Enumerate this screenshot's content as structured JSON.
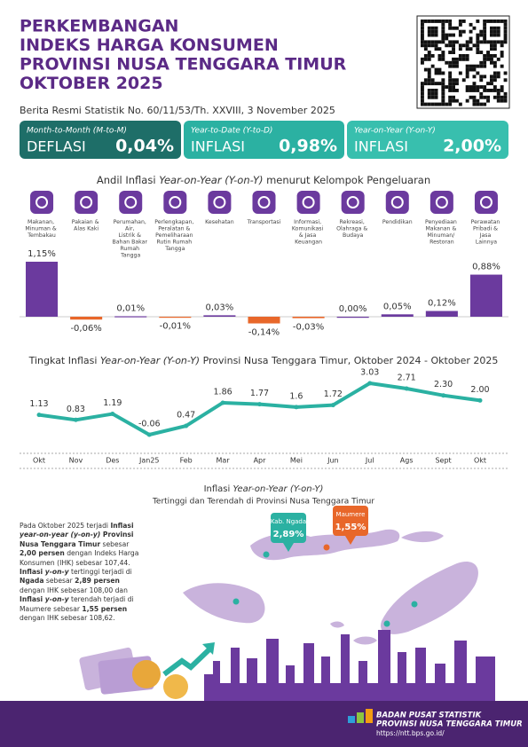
{
  "header": {
    "title_lines": [
      "PERKEMBANGAN",
      "INDEKS HARGA KONSUMEN",
      "PROVINSI NUSA TENGGARA TIMUR",
      "OKTOBER 2025"
    ],
    "subtitle": "Berita Resmi Statistik No. 60/11/53/Th. XXVIII, 3 November 2025"
  },
  "cards": [
    {
      "label": "Month-to-Month (M-to-M)",
      "kind": "DEFLASI",
      "value": "0,04%",
      "color": "#1e6e68"
    },
    {
      "label": "Year-to-Date (Y-to-D)",
      "kind": "INFLASI",
      "value": "0,98%",
      "color": "#2bb1a2"
    },
    {
      "label": "Year-on-Year (Y-on-Y)",
      "kind": "INFLASI",
      "value": "2,00%",
      "color": "#38bfae"
    }
  ],
  "chart_data": [
    {
      "type": "bar",
      "title_parts": [
        "Andil Inflasi ",
        "Year-on-Year (Y-on-Y)",
        " menurut Kelompok Pengeluaran"
      ],
      "categories": [
        "Makanan, Minuman & Tembakau",
        "Pakaian & Alas Kaki",
        "Perumahan, Air, Listrik & Bahan Bakar Rumah Tangga",
        "Perlengkapan, Peralatan & Pemeliharaan Rutin Rumah Tangga",
        "Kesehatan",
        "Transportasi",
        "Informasi, Komunikasi & Jasa Keuangan",
        "Rekreasi, Olahraga & Budaya",
        "Pendidikan",
        "Penyediaan Makanan & Minuman/ Restoran",
        "Perawatan Pribadi & Jasa Lainnya"
      ],
      "values": [
        1.15,
        -0.06,
        0.01,
        -0.01,
        0.03,
        -0.14,
        -0.03,
        0.0,
        0.05,
        0.12,
        0.88
      ],
      "value_labels": [
        "1,15%",
        "-0,06%",
        "0,01%",
        "-0,01%",
        "0,03%",
        "-0,14%",
        "-0,03%",
        "0,00%",
        "0,05%",
        "0,12%",
        "0,88%"
      ],
      "positive_color": "#6b3a9e",
      "negative_color": "#e8672a"
    },
    {
      "type": "line",
      "title_parts": [
        "Tingkat Inflasi ",
        "Year-on-Year (Y-on-Y)",
        " Provinsi Nusa Tenggara Timur, Oktober 2024 - Oktober 2025"
      ],
      "categories": [
        "Okt",
        "Nov",
        "Des",
        "Jan25",
        "Feb",
        "Mar",
        "Apr",
        "Mei",
        "Jun",
        "Jul",
        "Ags",
        "Sept",
        "Okt"
      ],
      "values": [
        1.13,
        0.83,
        1.19,
        -0.06,
        0.47,
        1.86,
        1.77,
        1.6,
        1.72,
        3.03,
        2.71,
        2.3,
        2.0
      ],
      "value_labels": [
        "1.13",
        "0.83",
        "1.19",
        "-0.06",
        "0.47",
        "1.86",
        "1.77",
        "1.6",
        "1.72",
        "3.03",
        "2.71",
        "2.30",
        "2.00"
      ],
      "color": "#2bb1a2"
    }
  ],
  "map": {
    "title_parts": [
      "Inflasi ",
      "Year-on-Year (Y-on-Y)"
    ],
    "subtitle": "Tertinggi dan Terendah di Provinsi Nusa Tenggara Timur",
    "callouts": [
      {
        "name": "Kab. Ngada",
        "value": "2,89%",
        "color": "#2bb1a2"
      },
      {
        "name": "Maumere",
        "value": "1,55%",
        "color": "#e8672a"
      }
    ],
    "paragraph": [
      {
        "text": "Pada Oktober 2025 terjadi ",
        "style": "normal"
      },
      {
        "text": "Inflasi ",
        "style": "bold"
      },
      {
        "text": "year-on-year (y-on-y)",
        "style": "bold-italic"
      },
      {
        "text": " Provinsi Nusa Tenggara Timur",
        "style": "bold"
      },
      {
        "text": " sebesar ",
        "style": "normal"
      },
      {
        "text": "2,00 persen",
        "style": "bold"
      },
      {
        "text": " dengan Indeks Harga Konsumen (IHK) sebesar 107,44. ",
        "style": "normal"
      },
      {
        "text": "Inflasi ",
        "style": "bold"
      },
      {
        "text": "y-on-y",
        "style": "bold-italic"
      },
      {
        "text": " tertinggi terjadi di ",
        "style": "normal"
      },
      {
        "text": "Ngada",
        "style": "bold"
      },
      {
        "text": " sebesar ",
        "style": "normal"
      },
      {
        "text": "2,89 persen",
        "style": "bold"
      },
      {
        "text": " dengan IHK sebesar 108,00 dan ",
        "style": "normal"
      },
      {
        "text": "Inflasi ",
        "style": "bold"
      },
      {
        "text": "y-on-y",
        "style": "bold-italic"
      },
      {
        "text": " terendah terjadi di Maumere sebesar ",
        "style": "normal"
      },
      {
        "text": "1,55 persen",
        "style": "bold"
      },
      {
        "text": " dengan IHK sebesar 108,62.",
        "style": "normal"
      }
    ]
  },
  "footer": {
    "org": "BADAN PUSAT STATISTIK",
    "province": "PROVINSI NUSA TENGGARA TIMUR",
    "url": "https://ntt.bps.go.id/"
  }
}
